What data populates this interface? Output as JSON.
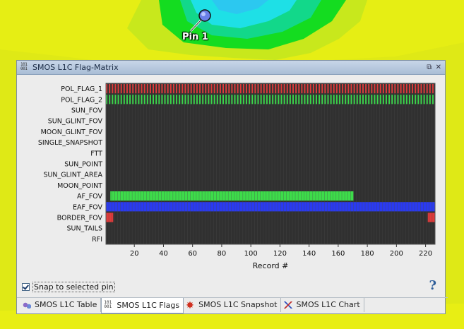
{
  "map": {
    "pin_label": "Pin 1",
    "colors": {
      "yellow": "#e3ee14",
      "yellow_green": "#c6ea1a",
      "green": "#12dc1e",
      "cyan": "#1ee0e6",
      "blue_green": "#12d890"
    }
  },
  "panel": {
    "title": "SMOS L1C Flag-Matrix",
    "title_icon_text": "101\n001",
    "window_buttons": [
      "restore-icon",
      "close-icon"
    ],
    "snap_label": "Snap to selected pin",
    "snap_checked": true,
    "help_symbol": "?"
  },
  "tabs": [
    {
      "label": "SMOS L1C Table",
      "icon": "table-icon",
      "active": false
    },
    {
      "label": "SMOS L1C Flags",
      "icon": "flags-icon",
      "active": true
    },
    {
      "label": "SMOS L1C Snapshot",
      "icon": "snapshot-icon",
      "active": false
    },
    {
      "label": "SMOS L1C Chart",
      "icon": "chart-icon",
      "active": false
    }
  ],
  "chart_data": {
    "type": "heatmap",
    "xlabel": "Record #",
    "xlim": [
      1,
      226
    ],
    "xticks": [
      20,
      40,
      60,
      80,
      100,
      120,
      140,
      160,
      180,
      200,
      220
    ],
    "flags": [
      "POL_FLAG_1",
      "POL_FLAG_2",
      "SUN_FOV",
      "SUN_GLINT_FOV",
      "MOON_GLINT_FOV",
      "SINGLE_SNAPSHOT",
      "FTT",
      "SUN_POINT",
      "SUN_GLINT_AREA",
      "MOON_POINT",
      "AF_FOV",
      "EAF_FOV",
      "BORDER_FOV",
      "SUN_TAILS",
      "RFI"
    ],
    "colors": {
      "background": "#303030",
      "grid": "#4a4a4a",
      "POL_FLAG_1": "#e03a3a",
      "POL_FLAG_2": "#3ad84a",
      "AF_FOV": "#3ddc4a",
      "EAF_FOV": "#2a3af0",
      "BORDER_FOV": "#e03a3a"
    },
    "set_ranges": {
      "POL_FLAG_1": "alternating",
      "POL_FLAG_2": "alternating",
      "AF_FOV": [
        [
          4,
          170
        ]
      ],
      "EAF_FOV": [
        [
          1,
          226
        ]
      ],
      "BORDER_FOV": [
        [
          1,
          5
        ],
        [
          222,
          226
        ]
      ]
    },
    "grid": true
  }
}
